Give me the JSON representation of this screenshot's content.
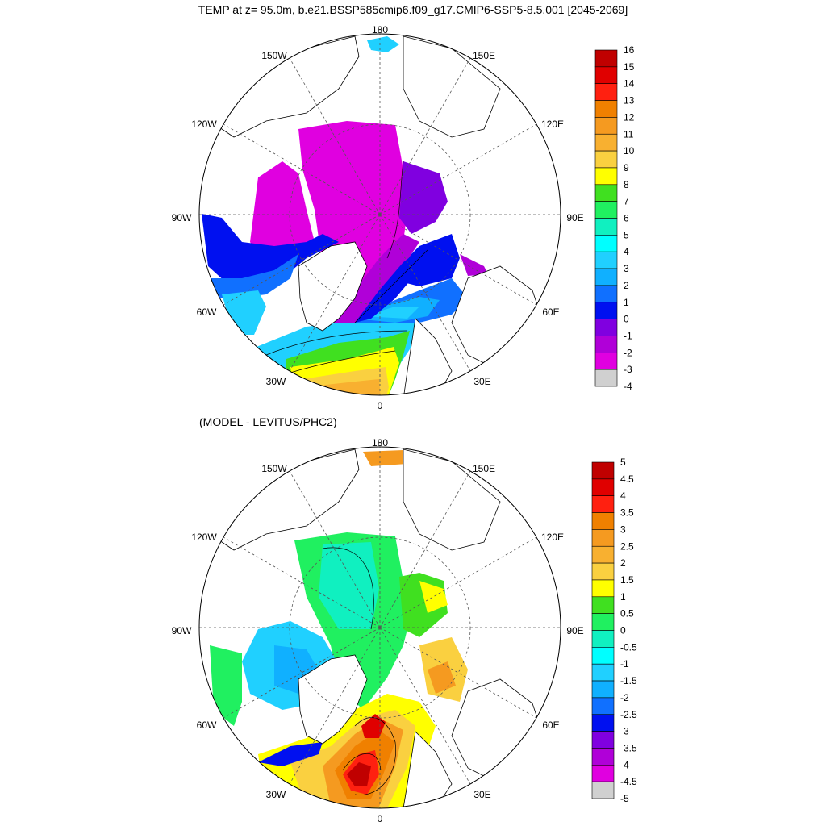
{
  "title": "TEMP at z=  95.0m, b.e21.BSSP585cmip6.f09_g17.CMIP6-SSP5-8.5.001 [2045-2069]",
  "subtitle": "(MODEL - LEVITUS/PHC2)",
  "longitude_labels": {
    "lon_180": "180",
    "lon_150w": "150W",
    "lon_150e": "150E",
    "lon_120w": "120W",
    "lon_120e": "120E",
    "lon_90w": "90W",
    "lon_90e": "90E",
    "lon_60w": "60W",
    "lon_60e": "60E",
    "lon_30w": "30W",
    "lon_30e": "30E",
    "lon_0": "0"
  },
  "top_colorbar": {
    "labels": [
      "16",
      "15",
      "14",
      "13",
      "12",
      "11",
      "10",
      "9",
      "8",
      "7",
      "6",
      "5",
      "4",
      "3",
      "2",
      "1",
      "0",
      "-1",
      "-2",
      "-3",
      "-4"
    ],
    "colors": [
      "#c00000",
      "#e00000",
      "#ff2010",
      "#f08000",
      "#f59a20",
      "#f8b030",
      "#fad040",
      "#ffff00",
      "#40e020",
      "#20f060",
      "#10f0c0",
      "#00ffff",
      "#20d0ff",
      "#10b0ff",
      "#1070ff",
      "#0010f0",
      "#8000e0",
      "#b000d8",
      "#e000e0",
      "#d0d0d0",
      "#707070"
    ]
  },
  "bottom_colorbar": {
    "labels": [
      "5",
      "4.5",
      "4",
      "3.5",
      "3",
      "2.5",
      "2",
      "1.5",
      "1",
      "0.5",
      "0",
      "-0.5",
      "-1",
      "-1.5",
      "-2",
      "-2.5",
      "-3",
      "-3.5",
      "-4",
      "-4.5",
      "-5"
    ],
    "colors": [
      "#c00000",
      "#e00000",
      "#ff2010",
      "#f08000",
      "#f59a20",
      "#f8b030",
      "#fad040",
      "#ffff00",
      "#40e020",
      "#20f060",
      "#10f0c0",
      "#00ffff",
      "#20d0ff",
      "#10b0ff",
      "#1070ff",
      "#0010f0",
      "#8000e0",
      "#b000d8",
      "#e000e0",
      "#d0d0d0",
      "#707070"
    ]
  }
}
